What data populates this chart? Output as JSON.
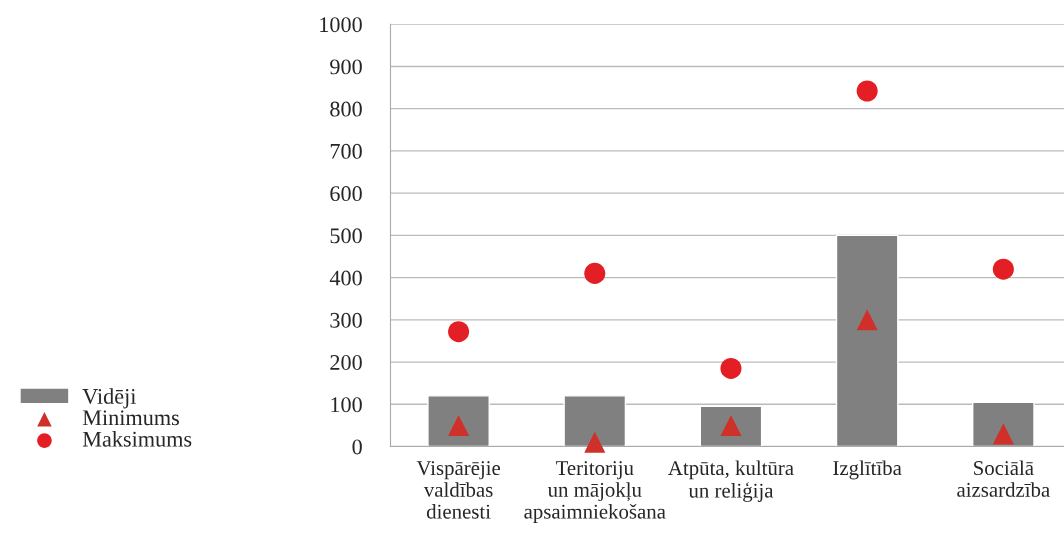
{
  "chart_data": {
    "type": "bar",
    "categories": [
      "Vispārējie\nvaldības\ndienesti",
      "Teritoriju\nun mājokļu\napsaimniekošana",
      "Atpūta, kultūra\nun reliģija",
      "Izglītība",
      "Sociālā\naizsardzība"
    ],
    "series": [
      {
        "name": "Vidēji",
        "color": "#808080",
        "values": [
          120,
          120,
          95,
          500,
          105
        ]
      },
      {
        "name": "Minimums",
        "type": "scatter",
        "marker": "triangle",
        "color": "#d0302a",
        "values": [
          50,
          10,
          50,
          300,
          30
        ]
      },
      {
        "name": "Maksimums",
        "type": "scatter",
        "marker": "circle",
        "color": "#e31e24",
        "values": [
          272,
          410,
          185,
          842,
          420
        ]
      }
    ],
    "ylim": [
      0,
      1000
    ],
    "yticks": [
      0,
      100,
      200,
      300,
      400,
      500,
      600,
      700,
      800,
      900,
      1000
    ],
    "grid": "y",
    "legend": "left"
  }
}
